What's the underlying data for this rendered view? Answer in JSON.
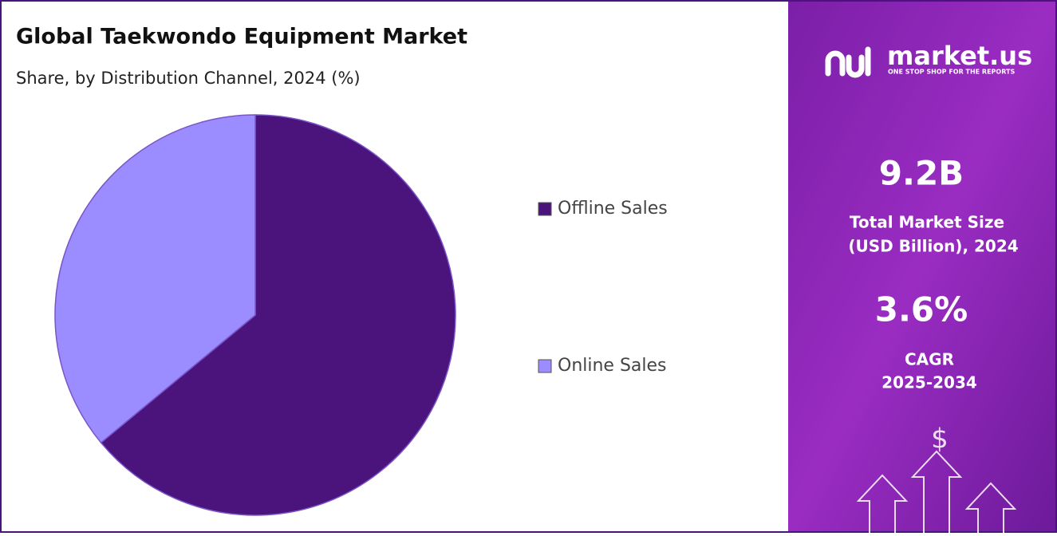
{
  "chart_data": {
    "type": "pie",
    "title": "Global Taekwondo Equipment Market",
    "subtitle": "Share, by Distribution Channel, 2024 (%)",
    "categories": [
      "Offline Sales",
      "Online Sales"
    ],
    "values": [
      64,
      36
    ],
    "colors": [
      "#4b137c",
      "#9b8cff"
    ]
  },
  "side_panel": {
    "brand": "market.us",
    "tagline": "ONE STOP SHOP FOR THE REPORTS",
    "market_size": "9.2B",
    "market_size_label": "Total Market Size",
    "market_size_unit": "(USD Billion), 2024",
    "cagr": "3.6%",
    "cagr_label": "CAGR",
    "cagr_period": "2025-2034"
  }
}
